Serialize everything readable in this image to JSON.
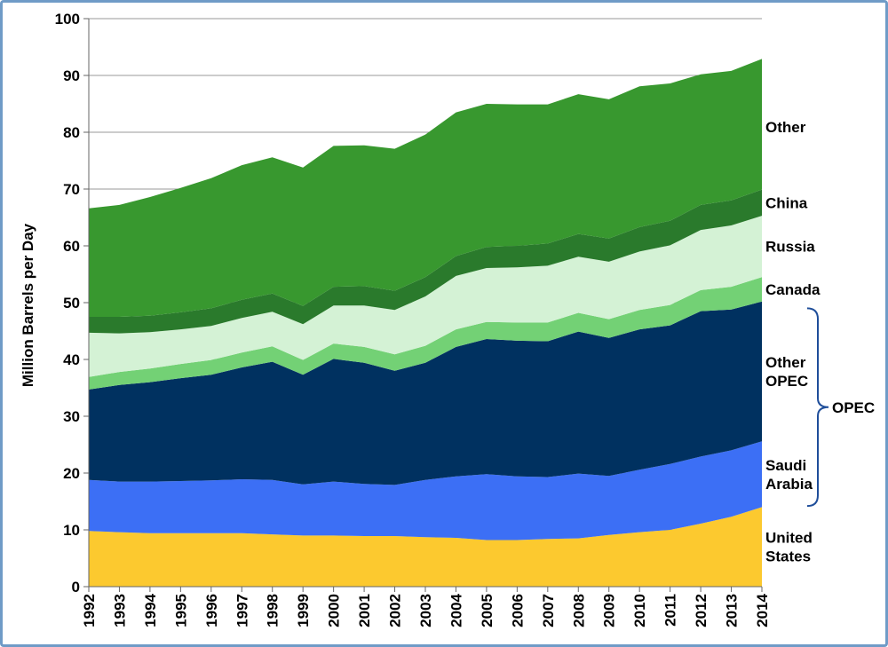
{
  "chart_data": {
    "type": "area",
    "stacked": true,
    "title": "",
    "xlabel": "",
    "ylabel": "Million Barrels per Day",
    "ylim": [
      0,
      100
    ],
    "yticks": [
      0,
      10,
      20,
      30,
      40,
      50,
      60,
      70,
      80,
      90,
      100
    ],
    "grid": true,
    "x": [
      1992,
      1993,
      1994,
      1995,
      1996,
      1997,
      1998,
      1999,
      2000,
      2001,
      2002,
      2003,
      2004,
      2005,
      2006,
      2007,
      2008,
      2009,
      2010,
      2011,
      2012,
      2013,
      2014
    ],
    "series": [
      {
        "name": "United States",
        "color": "#fcc92f",
        "values": [
          9.8,
          9.6,
          9.4,
          9.4,
          9.4,
          9.4,
          9.2,
          9.0,
          9.0,
          8.9,
          8.9,
          8.7,
          8.6,
          8.2,
          8.2,
          8.4,
          8.5,
          9.1,
          9.6,
          10.0,
          11.1,
          12.3,
          14.0
        ]
      },
      {
        "name": "Saudi Arabia",
        "color": "#3c6ff5",
        "values": [
          9.0,
          8.9,
          9.1,
          9.2,
          9.3,
          9.5,
          9.6,
          9.0,
          9.5,
          9.2,
          9.0,
          10.1,
          10.8,
          11.6,
          11.2,
          10.9,
          11.4,
          10.4,
          11.0,
          11.6,
          11.8,
          11.7,
          11.6
        ]
      },
      {
        "name": "Other OPEC",
        "color": "#003160",
        "values": [
          15.9,
          17.0,
          17.5,
          18.1,
          18.6,
          19.7,
          20.8,
          19.3,
          21.6,
          21.3,
          20.1,
          20.6,
          22.8,
          23.8,
          23.9,
          23.9,
          25.0,
          24.3,
          24.7,
          24.4,
          25.6,
          24.8,
          24.6
        ]
      },
      {
        "name": "Canada",
        "color": "#73d175",
        "values": [
          2.2,
          2.3,
          2.4,
          2.5,
          2.6,
          2.6,
          2.7,
          2.6,
          2.7,
          2.8,
          2.9,
          3.0,
          3.1,
          3.0,
          3.2,
          3.3,
          3.3,
          3.3,
          3.4,
          3.6,
          3.7,
          4.0,
          4.3
        ]
      },
      {
        "name": "Russia",
        "color": "#d4f2d5",
        "values": [
          7.8,
          6.8,
          6.4,
          6.1,
          6.0,
          6.1,
          6.1,
          6.3,
          6.7,
          7.3,
          7.8,
          8.7,
          9.4,
          9.5,
          9.7,
          10.0,
          9.9,
          10.1,
          10.3,
          10.5,
          10.6,
          10.8,
          10.8
        ]
      },
      {
        "name": "China",
        "color": "#2a7a2c",
        "values": [
          2.8,
          2.9,
          2.9,
          3.0,
          3.1,
          3.2,
          3.2,
          3.2,
          3.3,
          3.4,
          3.4,
          3.4,
          3.5,
          3.7,
          3.8,
          3.9,
          4.0,
          4.1,
          4.3,
          4.3,
          4.4,
          4.4,
          4.6
        ]
      },
      {
        "name": "Other",
        "color": "#38982f",
        "values": [
          19.1,
          19.7,
          20.9,
          21.9,
          22.9,
          23.7,
          24.0,
          24.4,
          24.8,
          24.8,
          25.0,
          25.1,
          25.3,
          25.2,
          24.9,
          24.5,
          24.6,
          24.5,
          24.8,
          24.2,
          23.0,
          22.8,
          23.0
        ]
      }
    ],
    "series_labels": [
      {
        "series": "United States",
        "lines": [
          "United",
          "States"
        ]
      },
      {
        "series": "Saudi Arabia",
        "lines": [
          "Saudi",
          "Arabia"
        ]
      },
      {
        "series": "Other OPEC",
        "lines": [
          "Other",
          "OPEC"
        ]
      },
      {
        "series": "Canada",
        "lines": [
          "Canada"
        ]
      },
      {
        "series": "Russia",
        "lines": [
          "Russia"
        ]
      },
      {
        "series": "China",
        "lines": [
          "China"
        ]
      },
      {
        "series": "Other",
        "lines": [
          "Other"
        ]
      }
    ],
    "group_annotation": {
      "label": "OPEC",
      "from": 14.2,
      "to": 49.0
    }
  }
}
